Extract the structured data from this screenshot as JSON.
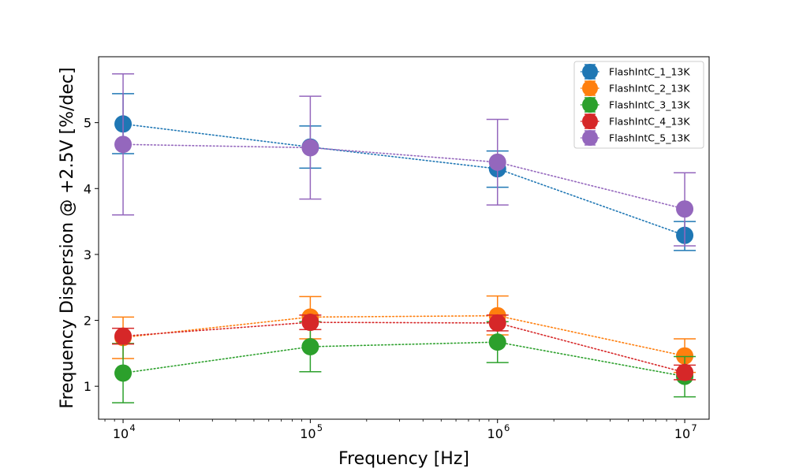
{
  "chart_data": {
    "type": "scatter",
    "xlabel": "Frequency [Hz]",
    "ylabel": "Frequency Dispersion @ +2.5V [%/dec]",
    "x_scale": "log",
    "xlim": [
      7400,
      13500000
    ],
    "ylim": [
      0.5,
      6.0
    ],
    "x_ticks": [
      {
        "value": 10000,
        "base": "10",
        "exp": "4"
      },
      {
        "value": 100000,
        "base": "10",
        "exp": "5"
      },
      {
        "value": 1000000,
        "base": "10",
        "exp": "6"
      },
      {
        "value": 10000000,
        "base": "10",
        "exp": "7"
      }
    ],
    "y_ticks": [
      {
        "value": 1,
        "label": "1"
      },
      {
        "value": 2,
        "label": "2"
      },
      {
        "value": 3,
        "label": "3"
      },
      {
        "value": 4,
        "label": "4"
      },
      {
        "value": 5,
        "label": "5"
      }
    ],
    "grid": false,
    "legend_position": "top-right",
    "line_style": "dotted",
    "x": [
      10000,
      100000,
      1000000,
      10000000
    ],
    "series": [
      {
        "name": "FlashIntC_1_13K",
        "color": "#1f77b4",
        "values": [
          4.98,
          4.63,
          4.3,
          3.29
        ],
        "err_low": [
          4.53,
          4.31,
          4.02,
          3.06
        ],
        "err_high": [
          5.44,
          4.95,
          4.57,
          3.5
        ]
      },
      {
        "name": "FlashIntC_2_13K",
        "color": "#ff7f0e",
        "values": [
          1.74,
          2.05,
          2.07,
          1.46
        ],
        "err_low": [
          1.42,
          1.72,
          1.78,
          1.21
        ],
        "err_high": [
          2.05,
          2.36,
          2.37,
          1.72
        ]
      },
      {
        "name": "FlashIntC_3_13K",
        "color": "#2ca02c",
        "values": [
          1.2,
          1.6,
          1.67,
          1.15
        ],
        "err_low": [
          0.75,
          1.22,
          1.36,
          0.84
        ],
        "err_high": [
          1.65,
          1.98,
          1.98,
          1.45
        ]
      },
      {
        "name": "FlashIntC_4_13K",
        "color": "#d62728",
        "values": [
          1.76,
          1.97,
          1.96,
          1.21
        ],
        "err_low": [
          1.64,
          1.86,
          1.84,
          1.1
        ],
        "err_high": [
          1.88,
          2.08,
          2.08,
          1.32
        ]
      },
      {
        "name": "FlashIntC_5_13K",
        "color": "#9467bd",
        "values": [
          4.67,
          4.62,
          4.4,
          3.69
        ],
        "err_low": [
          3.6,
          3.84,
          3.75,
          3.13
        ],
        "err_high": [
          5.74,
          5.4,
          5.05,
          4.24
        ]
      }
    ]
  }
}
